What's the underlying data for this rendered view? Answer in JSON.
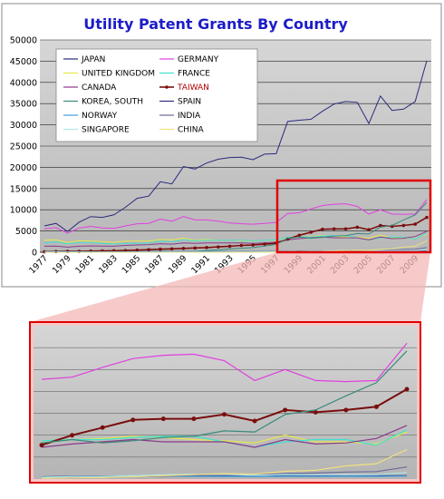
{
  "chart_data": {
    "type": "line",
    "title": "Utility Patent Grants By Country",
    "xlabel": "",
    "ylabel": "",
    "ylim": [
      0,
      50000
    ],
    "yticks": [
      "0",
      "5000",
      "10000",
      "15000",
      "20000",
      "25000",
      "30000",
      "35000",
      "40000",
      "45000",
      "50000"
    ],
    "x": [
      1977,
      1978,
      1979,
      1980,
      1981,
      1982,
      1983,
      1984,
      1985,
      1986,
      1987,
      1988,
      1989,
      1990,
      1991,
      1992,
      1993,
      1994,
      1995,
      1996,
      1997,
      1998,
      1999,
      2000,
      2001,
      2002,
      2003,
      2004,
      2005,
      2006,
      2007,
      2008,
      2009,
      2010
    ],
    "xtick_labels": [
      "1977",
      "1979",
      "1981",
      "1983",
      "1985",
      "1987",
      "1989",
      "1991",
      "1993",
      "1995",
      "1997",
      "1999",
      "2001",
      "2003",
      "2005",
      "2007",
      "2009"
    ],
    "grid": true,
    "legend_position": "top-left",
    "series": [
      {
        "name": "JAPAN",
        "color": "#2a2a7e",
        "values": [
          6200,
          6800,
          4900,
          7100,
          8400,
          8200,
          8800,
          10600,
          12700,
          13200,
          16600,
          16100,
          20200,
          19600,
          21000,
          21900,
          22300,
          22400,
          21800,
          23100,
          23200,
          30800,
          31100,
          31300,
          33200,
          34900,
          35500,
          35300,
          30300,
          36800,
          33400,
          33700,
          35500,
          45100
        ]
      },
      {
        "name": "GERMANY",
        "color": "#e040e0",
        "values": [
          5500,
          5800,
          4500,
          5700,
          6100,
          5700,
          5600,
          6200,
          6700,
          6800,
          7800,
          7300,
          8400,
          7600,
          7600,
          7300,
          6900,
          6700,
          6600,
          6800,
          7000,
          9100,
          9300,
          10200,
          11000,
          11300,
          11400,
          10800,
          9000,
          10000,
          9000,
          8900,
          9000,
          12400
        ]
      },
      {
        "name": "UNITED KINGDOM",
        "color": "#e8e84a",
        "values": [
          2800,
          2900,
          2300,
          2700,
          2600,
          2500,
          2300,
          2600,
          2600,
          2600,
          3000,
          2900,
          3300,
          2800,
          3000,
          2800,
          2800,
          2700,
          2600,
          2800,
          2800,
          3500,
          3600,
          3700,
          3900,
          3800,
          3600,
          3500,
          3300,
          4000,
          3400,
          3400,
          3200,
          4300
        ]
      },
      {
        "name": "FRANCE",
        "color": "#40e0d0",
        "values": [
          2200,
          2400,
          2000,
          2300,
          2300,
          2100,
          1900,
          2100,
          2100,
          2200,
          2600,
          2400,
          2900,
          2700,
          2800,
          2800,
          2800,
          2800,
          2700,
          2800,
          2900,
          3500,
          3600,
          3600,
          3800,
          3900,
          3900,
          3400,
          2900,
          3400,
          3600,
          3600,
          3100,
          4500
        ]
      },
      {
        "name": "CANADA",
        "color": "#8a3a8a",
        "values": [
          1400,
          1450,
          1200,
          1400,
          1500,
          1450,
          1400,
          1600,
          1700,
          1800,
          2000,
          1900,
          2200,
          2100,
          2200,
          2200,
          2200,
          2200,
          2100,
          2200,
          2400,
          2900,
          3200,
          3400,
          3600,
          3400,
          3400,
          3400,
          2900,
          3600,
          3200,
          3300,
          3700,
          4900
        ]
      },
      {
        "name": "TAIWAN",
        "color": "#7a0e0e",
        "marker": true,
        "values": [
          100,
          150,
          200,
          200,
          250,
          300,
          350,
          400,
          500,
          600,
          700,
          800,
          900,
          1000,
          1100,
          1250,
          1400,
          1600,
          1700,
          1900,
          2100,
          3100,
          4000,
          4700,
          5400,
          5500,
          5500,
          5900,
          5300,
          6300,
          6100,
          6300,
          6600,
          8200
        ]
      },
      {
        "name": "KOREA, SOUTH",
        "color": "#3a8a7a",
        "values": [
          10,
          10,
          10,
          10,
          20,
          20,
          30,
          30,
          40,
          50,
          80,
          100,
          150,
          200,
          400,
          550,
          800,
          950,
          1100,
          1450,
          1850,
          3300,
          3600,
          3300,
          3500,
          3800,
          3900,
          4400,
          4300,
          5900,
          6300,
          7600,
          8800,
          11700
        ]
      },
      {
        "name": "SPAIN",
        "color": "#2a2a7e",
        "values": [
          150,
          160,
          140,
          150,
          130,
          120,
          110,
          120,
          130,
          140,
          150,
          150,
          180,
          170,
          170,
          170,
          170,
          170,
          170,
          170,
          180,
          200,
          250,
          280,
          270,
          300,
          300,
          290,
          230,
          300,
          300,
          280,
          300,
          300
        ]
      },
      {
        "name": "NORWAY",
        "color": "#40a0e0",
        "values": [
          100,
          110,
          100,
          110,
          100,
          100,
          100,
          100,
          110,
          120,
          130,
          130,
          140,
          140,
          150,
          150,
          160,
          160,
          160,
          170,
          170,
          190,
          220,
          250,
          260,
          260,
          250,
          240,
          230,
          250,
          250,
          260,
          250,
          270
        ]
      },
      {
        "name": "INDIA",
        "color": "#6a6a9a",
        "values": [
          10,
          10,
          10,
          10,
          10,
          10,
          10,
          10,
          10,
          10,
          10,
          10,
          20,
          20,
          30,
          30,
          40,
          40,
          40,
          40,
          50,
          90,
          110,
          130,
          180,
          250,
          350,
          360,
          380,
          500,
          550,
          640,
          680,
          1100
        ]
      },
      {
        "name": "SINGAPORE",
        "color": "#b0e8e8",
        "values": [
          10,
          10,
          10,
          10,
          10,
          10,
          10,
          10,
          10,
          10,
          10,
          20,
          20,
          20,
          20,
          30,
          40,
          50,
          60,
          80,
          100,
          150,
          220,
          250,
          300,
          400,
          420,
          440,
          340,
          410,
          390,
          400,
          400,
          600
        ]
      },
      {
        "name": "CHINA",
        "color": "#f0e080",
        "values": [
          0,
          0,
          0,
          0,
          0,
          0,
          0,
          0,
          0,
          0,
          0,
          0,
          0,
          0,
          0,
          0,
          0,
          0,
          0,
          0,
          0,
          80,
          100,
          130,
          200,
          300,
          400,
          500,
          450,
          700,
          800,
          1200,
          1400,
          2700
        ]
      }
    ]
  }
}
